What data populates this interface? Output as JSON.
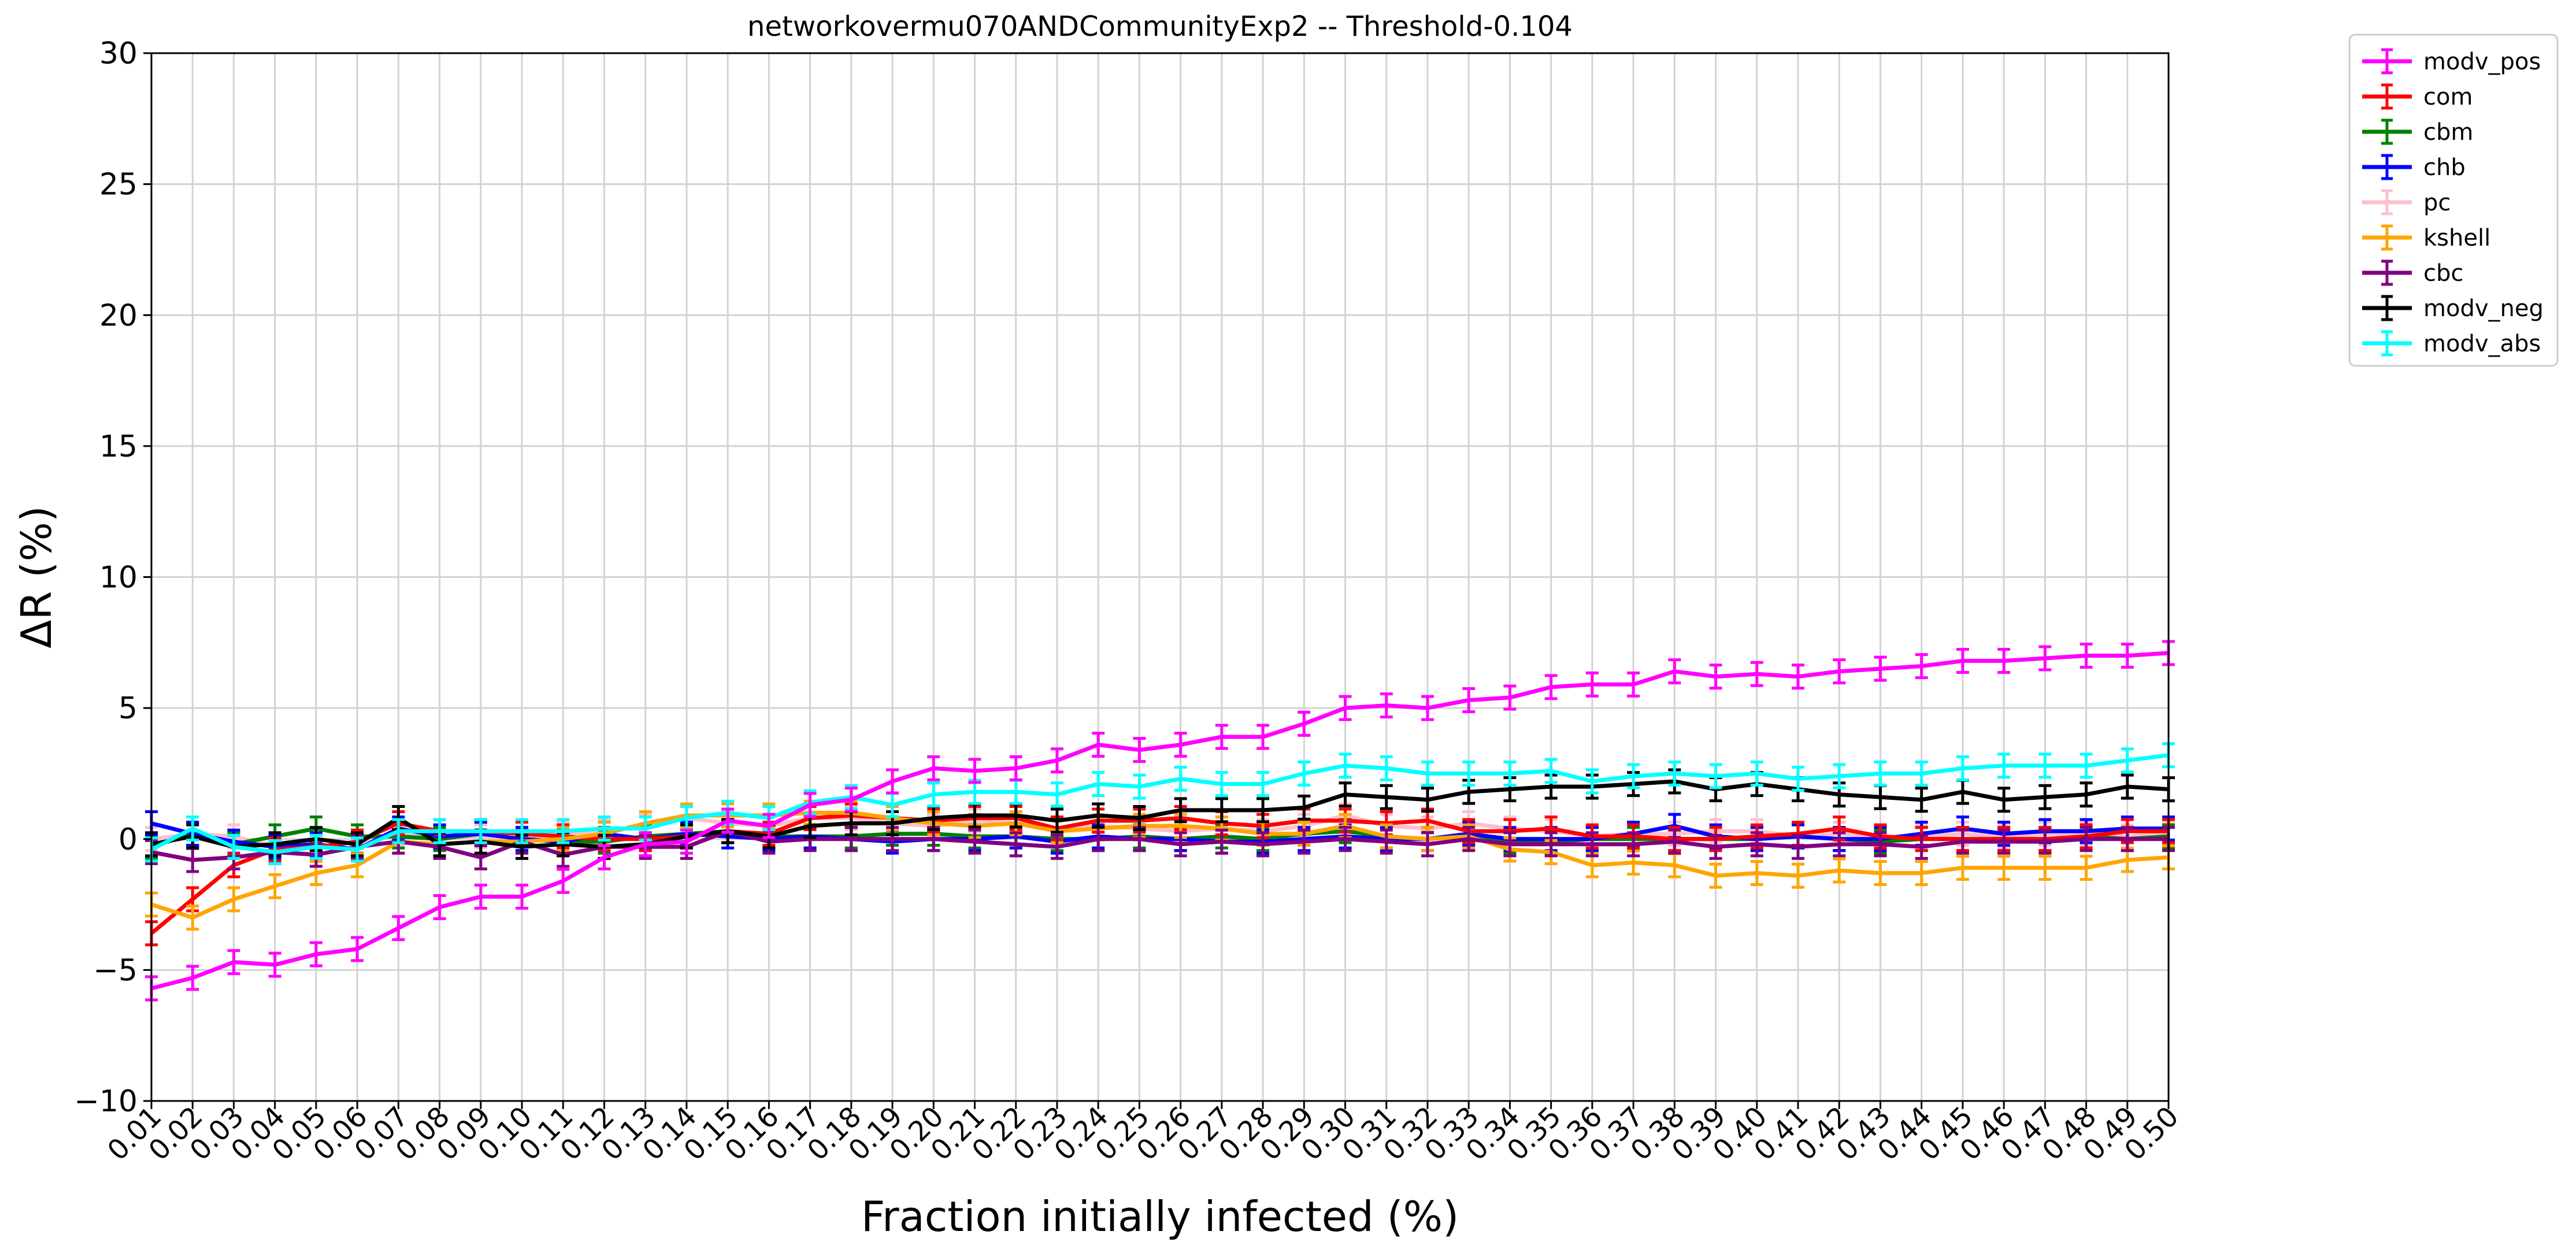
{
  "chart_data": {
    "type": "line",
    "title": "networkovermu070ANDCommunityExp2 -- Threshold-0.104",
    "xlabel": "Fraction initially infected (%)",
    "ylabel": "ΔR (%)",
    "ylim": [
      -10,
      30
    ],
    "yticks": [
      -10,
      -5,
      0,
      5,
      10,
      15,
      20,
      25,
      30
    ],
    "grid": true,
    "legend_position": "outside-top-right",
    "categories": [
      "0.01",
      "0.02",
      "0.03",
      "0.04",
      "0.05",
      "0.06",
      "0.07",
      "0.08",
      "0.09",
      "0.10",
      "0.11",
      "0.12",
      "0.13",
      "0.14",
      "0.15",
      "0.16",
      "0.17",
      "0.18",
      "0.19",
      "0.20",
      "0.21",
      "0.22",
      "0.23",
      "0.24",
      "0.25",
      "0.26",
      "0.27",
      "0.28",
      "0.29",
      "0.30",
      "0.31",
      "0.32",
      "0.33",
      "0.34",
      "0.35",
      "0.36",
      "0.37",
      "0.38",
      "0.39",
      "0.40",
      "0.41",
      "0.42",
      "0.43",
      "0.44",
      "0.45",
      "0.46",
      "0.47",
      "0.48",
      "0.49",
      "0.50"
    ],
    "series": [
      {
        "name": "pc",
        "color": "#ffc0cb",
        "values": [
          0.0,
          0.2,
          0.1,
          -0.3,
          0.0,
          -0.2,
          0.2,
          0.0,
          0.1,
          0.0,
          0.2,
          0.3,
          0.5,
          0.8,
          0.6,
          0.5,
          0.8,
          0.8,
          0.6,
          0.5,
          0.7,
          0.6,
          0.4,
          0.5,
          0.4,
          0.3,
          0.4,
          0.3,
          0.5,
          0.9,
          0.5,
          0.4,
          0.6,
          0.4,
          0.3,
          0.1,
          0.2,
          0.2,
          0.3,
          0.3,
          0.1,
          0.2,
          0.1,
          0.1,
          0.2,
          0.1,
          0.2,
          0.2,
          0.1,
          0.2
        ]
      },
      {
        "name": "cbm",
        "color": "#008000",
        "values": [
          -0.3,
          0.2,
          -0.2,
          0.1,
          0.4,
          0.1,
          0.1,
          0.0,
          0.2,
          0.0,
          -0.1,
          -0.1,
          0.1,
          0.2,
          0.3,
          0.1,
          0.1,
          0.1,
          0.2,
          0.2,
          0.1,
          0.1,
          0.0,
          0.0,
          0.1,
          0.0,
          0.1,
          0.0,
          0.2,
          0.3,
          0.1,
          0.0,
          0.2,
          -0.1,
          -0.1,
          0.0,
          0.0,
          0.0,
          0.0,
          0.0,
          0.1,
          0.0,
          -0.1,
          0.0,
          0.0,
          0.0,
          0.0,
          0.1,
          0.0,
          0.1
        ]
      },
      {
        "name": "chb",
        "color": "#0000ff",
        "values": [
          0.6,
          0.2,
          -0.1,
          -0.3,
          -0.2,
          -0.4,
          0.4,
          0.1,
          0.2,
          0.0,
          -0.1,
          0.2,
          0.0,
          0.2,
          0.1,
          0.0,
          0.1,
          0.0,
          -0.1,
          0.0,
          0.0,
          0.1,
          -0.1,
          0.1,
          0.0,
          0.0,
          -0.1,
          -0.1,
          0.0,
          0.1,
          0.0,
          0.0,
          0.2,
          0.0,
          0.0,
          0.0,
          0.2,
          0.5,
          0.1,
          0.0,
          0.1,
          0.0,
          0.0,
          0.2,
          0.4,
          0.2,
          0.3,
          0.3,
          0.4,
          0.4
        ]
      },
      {
        "name": "com",
        "color": "#ff0000",
        "values": [
          -3.6,
          -2.3,
          -1.0,
          -0.4,
          -0.3,
          -0.1,
          0.6,
          0.3,
          0.3,
          0.2,
          0.1,
          0.0,
          0.0,
          0.1,
          0.3,
          0.2,
          0.8,
          0.9,
          0.8,
          0.7,
          0.8,
          0.8,
          0.4,
          0.7,
          0.7,
          0.8,
          0.6,
          0.5,
          0.7,
          0.7,
          0.6,
          0.7,
          0.3,
          0.3,
          0.4,
          0.1,
          0.1,
          0.0,
          0.0,
          0.1,
          0.2,
          0.4,
          0.1,
          0.0,
          0.0,
          0.0,
          0.0,
          0.1,
          0.3,
          0.3
        ]
      },
      {
        "name": "kshell",
        "color": "#ffa500",
        "values": [
          -2.5,
          -3.0,
          -2.3,
          -1.8,
          -1.3,
          -1.0,
          -0.1,
          -0.2,
          -0.1,
          -0.1,
          0.0,
          0.2,
          0.6,
          0.9,
          0.9,
          0.9,
          1.0,
          1.0,
          0.8,
          0.6,
          0.5,
          0.6,
          0.3,
          0.4,
          0.5,
          0.5,
          0.4,
          0.2,
          0.2,
          0.5,
          0.1,
          0.0,
          0.1,
          -0.4,
          -0.5,
          -1.0,
          -0.9,
          -1.0,
          -1.4,
          -1.3,
          -1.4,
          -1.2,
          -1.3,
          -1.3,
          -1.1,
          -1.1,
          -1.1,
          -1.1,
          -0.8,
          -0.7
        ]
      },
      {
        "name": "cbc",
        "color": "#800080",
        "values": [
          -0.5,
          -0.8,
          -0.7,
          -0.5,
          -0.6,
          -0.3,
          -0.1,
          -0.3,
          -0.7,
          -0.1,
          -0.6,
          -0.3,
          -0.3,
          -0.3,
          0.3,
          -0.1,
          0.0,
          0.0,
          0.0,
          0.0,
          -0.1,
          -0.2,
          -0.3,
          0.0,
          0.0,
          -0.2,
          -0.1,
          -0.2,
          -0.1,
          0.0,
          -0.1,
          -0.2,
          0.0,
          -0.2,
          -0.2,
          -0.2,
          -0.2,
          -0.1,
          -0.3,
          -0.2,
          -0.3,
          -0.2,
          -0.2,
          -0.3,
          -0.1,
          -0.1,
          -0.1,
          0.0,
          0.0,
          0.0
        ]
      },
      {
        "name": "modv_neg",
        "color": "#000000",
        "values": [
          -0.2,
          0.1,
          -0.3,
          -0.2,
          0.0,
          -0.2,
          0.8,
          -0.2,
          -0.1,
          -0.3,
          -0.2,
          -0.3,
          -0.2,
          0.1,
          0.3,
          0.1,
          0.5,
          0.6,
          0.6,
          0.8,
          0.9,
          0.9,
          0.7,
          0.9,
          0.8,
          1.1,
          1.1,
          1.1,
          1.2,
          1.7,
          1.6,
          1.5,
          1.8,
          1.9,
          2.0,
          2.0,
          2.1,
          2.2,
          1.9,
          2.1,
          1.9,
          1.7,
          1.6,
          1.5,
          1.8,
          1.5,
          1.6,
          1.7,
          2.0,
          1.9
        ]
      },
      {
        "name": "modv_abs",
        "color": "#00ffff",
        "values": [
          -0.4,
          0.4,
          -0.3,
          -0.5,
          -0.3,
          -0.4,
          0.3,
          0.3,
          0.3,
          0.3,
          0.3,
          0.4,
          0.4,
          0.8,
          1.0,
          0.8,
          1.4,
          1.6,
          1.3,
          1.7,
          1.8,
          1.8,
          1.7,
          2.1,
          2.0,
          2.3,
          2.1,
          2.1,
          2.5,
          2.8,
          2.7,
          2.5,
          2.5,
          2.5,
          2.6,
          2.2,
          2.4,
          2.5,
          2.4,
          2.5,
          2.3,
          2.4,
          2.5,
          2.5,
          2.7,
          2.8,
          2.8,
          2.8,
          3.0,
          3.2
        ]
      },
      {
        "name": "modv_pos",
        "color": "#ff00ff",
        "values": [
          -5.7,
          -5.3,
          -4.7,
          -4.8,
          -4.4,
          -4.2,
          -3.4,
          -2.6,
          -2.2,
          -2.2,
          -1.6,
          -0.7,
          -0.2,
          -0.1,
          0.7,
          0.5,
          1.3,
          1.5,
          2.2,
          2.7,
          2.6,
          2.7,
          3.0,
          3.6,
          3.4,
          3.6,
          3.9,
          3.9,
          4.4,
          5.0,
          5.1,
          5.0,
          5.3,
          5.4,
          5.8,
          5.9,
          5.9,
          6.4,
          6.2,
          6.3,
          6.2,
          6.4,
          6.5,
          6.6,
          6.8,
          6.8,
          6.9,
          7.0,
          7.0,
          7.1
        ]
      }
    ],
    "legend_order": [
      "modv_pos",
      "com",
      "cbm",
      "chb",
      "pc",
      "kshell",
      "cbc",
      "modv_neg",
      "modv_abs"
    ]
  }
}
